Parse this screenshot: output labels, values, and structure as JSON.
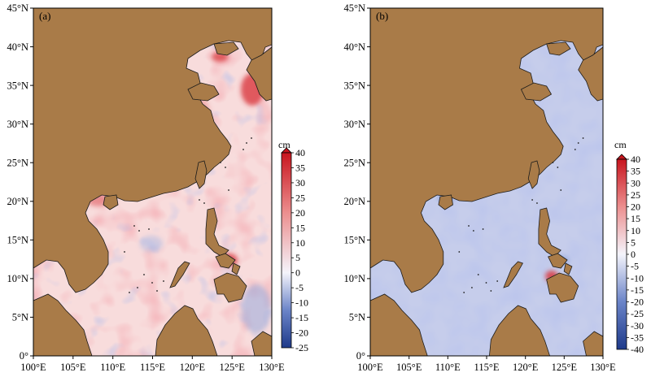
{
  "colors": {
    "land": "#a97b48",
    "coast": "#1a1a1a",
    "ocean_zero": "#f4f4fb",
    "red_max": "#c8151e",
    "blue_max": "#1e3a8a"
  },
  "axes": {
    "x_ticks": [
      "100°E",
      "105°E",
      "110°E",
      "115°E",
      "120°E",
      "125°E",
      "130°E"
    ],
    "y_ticks": [
      "0°",
      "5°N",
      "10°N",
      "15°N",
      "20°N",
      "25°N",
      "30°N",
      "35°N",
      "40°N",
      "45°N"
    ],
    "lon_range": [
      100,
      130
    ],
    "lat_range": [
      0,
      45
    ]
  },
  "panels": [
    {
      "label": "(a)",
      "colorbar": {
        "unit": "cm",
        "min": -25,
        "max": 40,
        "ticks": [
          "40",
          "35",
          "30",
          "25",
          "20",
          "15",
          "10",
          "5",
          "0",
          "-5",
          "-10",
          "-15",
          "-20",
          "-25"
        ]
      }
    },
    {
      "label": "(b)",
      "colorbar": {
        "unit": "cm",
        "min": -40,
        "max": 40,
        "ticks": [
          "40",
          "35",
          "30",
          "25",
          "20",
          "15",
          "10",
          "5",
          "0",
          "-5",
          "-10",
          "-15",
          "-20",
          "-25",
          "-30",
          "-35",
          "-40"
        ]
      }
    }
  ],
  "chart_data": [
    {
      "type": "heatmap",
      "title": "(a)",
      "xlabel": "",
      "ylabel": "",
      "xlim": [
        100,
        130
      ],
      "ylim": [
        0,
        45
      ],
      "colorbar_label": "cm",
      "colorbar_range": [
        -25,
        40
      ],
      "field_range_estimate": [
        -10,
        30
      ],
      "region": "South China Sea, East China Sea, Yellow Sea, Bohai Sea, western Pacific",
      "description_note": "mostly weak positive values (0 to 10 cm) with local highs up to ~30 cm near Korea, Bohai and the Philippines"
    },
    {
      "type": "heatmap",
      "title": "(b)",
      "xlabel": "",
      "ylabel": "",
      "xlim": [
        100,
        130
      ],
      "ylim": [
        0,
        45
      ],
      "colorbar_label": "cm",
      "colorbar_range": [
        -40,
        40
      ],
      "field_range_estimate": [
        -15,
        25
      ],
      "region": "South China Sea, East China Sea, Yellow Sea, Bohai Sea, western Pacific",
      "description_note": "nearly uniform weak negative values (about -5 to -10 cm) with a local positive spot in the central Philippines"
    }
  ]
}
